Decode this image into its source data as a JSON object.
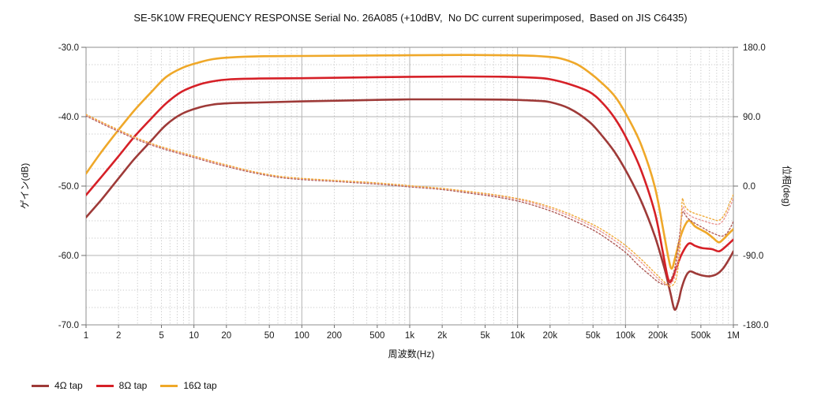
{
  "chart_data": {
    "type": "line",
    "title": "SE-5K10W FREQUENCY RESPONSE Serial No. 26A085 (+10dBV,  No DC current superimposed,  Based on JIS C6435)",
    "xlabel": "周波数(Hz)",
    "ylabel_left": "ゲイン(dB)",
    "ylabel_right": "位相(deg)",
    "x_scale": "log",
    "x_range_hz": [
      1,
      1000000
    ],
    "y_left_range_db": [
      -70,
      -30
    ],
    "y_right_range_deg": [
      -180,
      180
    ],
    "grid": "major-solid, minor-dotted (2.5 dB / 22.5 deg steps, log minor decades)",
    "legend_position": "bottom-left",
    "x_tick_freqs": [
      1,
      2,
      5,
      10,
      20,
      50,
      100,
      200,
      500,
      1000,
      2000,
      5000,
      10000,
      20000,
      50000,
      100000,
      200000,
      500000,
      1000000
    ],
    "x_tick_labels": [
      "1",
      "2",
      "5",
      "10",
      "20",
      "50",
      "100",
      "200",
      "500",
      "1k",
      "2k",
      "5k",
      "10k",
      "20k",
      "50k",
      "100k",
      "200k",
      "500k",
      "1M"
    ],
    "y_left_tick_values": [
      -30,
      -40,
      -50,
      -60,
      -70
    ],
    "y_left_ticks": [
      "-30.0",
      "-40.0",
      "-50.0",
      "-60.0",
      "-70.0"
    ],
    "y_right_tick_values": [
      180,
      90,
      0,
      -90,
      -180
    ],
    "y_right_ticks": [
      "180.0",
      "90.0",
      "0.0",
      "-90.0",
      "-180.0"
    ],
    "series": [
      {
        "id": "4ohm",
        "name": "4Ω tap gain",
        "axis": "gain",
        "unit": "dB",
        "line_style": "solid",
        "color": "#9E3A38",
        "width": 2.6,
        "points": [
          [
            1,
            -54.5
          ],
          [
            1.4,
            -51.9
          ],
          [
            2,
            -48.9
          ],
          [
            2.8,
            -46.1
          ],
          [
            4,
            -43.5
          ],
          [
            5.5,
            -41.2
          ],
          [
            7.7,
            -39.6
          ],
          [
            11,
            -38.7
          ],
          [
            15,
            -38.25
          ],
          [
            22,
            -38.05
          ],
          [
            40,
            -37.95
          ],
          [
            100,
            -37.8
          ],
          [
            300,
            -37.65
          ],
          [
            1000,
            -37.5
          ],
          [
            3000,
            -37.5
          ],
          [
            8000,
            -37.55
          ],
          [
            15000,
            -37.7
          ],
          [
            20000,
            -37.9
          ],
          [
            30000,
            -38.8
          ],
          [
            46000,
            -40.7
          ],
          [
            61000,
            -42.8
          ],
          [
            81000,
            -45.3
          ],
          [
            106000,
            -48.4
          ],
          [
            141000,
            -52.3
          ],
          [
            187000,
            -57.2
          ],
          [
            230000,
            -61.9
          ],
          [
            260000,
            -65.3
          ],
          [
            285000,
            -67.8
          ],
          [
            310000,
            -66.6
          ],
          [
            330000,
            -64.8
          ],
          [
            360000,
            -63.1
          ],
          [
            395000,
            -62.3
          ],
          [
            450000,
            -62.6
          ],
          [
            520000,
            -62.9
          ],
          [
            600000,
            -63.0
          ],
          [
            700000,
            -62.7
          ],
          [
            800000,
            -61.9
          ],
          [
            900000,
            -60.7
          ],
          [
            1000000,
            -59.4
          ]
        ]
      },
      {
        "id": "8ohm",
        "name": "8Ω tap gain",
        "axis": "gain",
        "unit": "dB",
        "line_style": "solid",
        "color": "#D62027",
        "width": 2.6,
        "points": [
          [
            1,
            -51.3
          ],
          [
            1.4,
            -48.6
          ],
          [
            2,
            -45.7
          ],
          [
            2.8,
            -42.9
          ],
          [
            4,
            -40.3
          ],
          [
            5.5,
            -38.1
          ],
          [
            7.7,
            -36.4
          ],
          [
            11,
            -35.4
          ],
          [
            15,
            -34.9
          ],
          [
            22,
            -34.6
          ],
          [
            40,
            -34.5
          ],
          [
            100,
            -34.45
          ],
          [
            300,
            -34.35
          ],
          [
            1000,
            -34.25
          ],
          [
            3000,
            -34.2
          ],
          [
            8000,
            -34.25
          ],
          [
            15000,
            -34.4
          ],
          [
            20000,
            -34.6
          ],
          [
            30000,
            -35.3
          ],
          [
            46000,
            -36.4
          ],
          [
            61000,
            -38.0
          ],
          [
            81000,
            -40.4
          ],
          [
            106000,
            -43.6
          ],
          [
            141000,
            -47.9
          ],
          [
            187000,
            -53.8
          ],
          [
            220000,
            -59.2
          ],
          [
            245000,
            -63.0
          ],
          [
            262000,
            -63.8
          ],
          [
            290000,
            -62.2
          ],
          [
            330000,
            -59.9
          ],
          [
            385000,
            -58.3
          ],
          [
            440000,
            -58.6
          ],
          [
            500000,
            -58.9
          ],
          [
            560000,
            -59.0
          ],
          [
            640000,
            -59.1
          ],
          [
            740000,
            -59.4
          ],
          [
            850000,
            -58.7
          ],
          [
            1000000,
            -57.7
          ]
        ]
      },
      {
        "id": "16ohm",
        "name": "16Ω tap gain",
        "axis": "gain",
        "unit": "dB",
        "line_style": "solid",
        "color": "#EFA829",
        "width": 2.6,
        "points": [
          [
            1,
            -48.2
          ],
          [
            1.4,
            -45.0
          ],
          [
            2,
            -41.9
          ],
          [
            2.8,
            -39.1
          ],
          [
            4,
            -36.5
          ],
          [
            5.5,
            -34.3
          ],
          [
            7.7,
            -33.0
          ],
          [
            11,
            -32.2
          ],
          [
            15,
            -31.7
          ],
          [
            22,
            -31.45
          ],
          [
            40,
            -31.3
          ],
          [
            100,
            -31.25
          ],
          [
            300,
            -31.2
          ],
          [
            1000,
            -31.15
          ],
          [
            3000,
            -31.1
          ],
          [
            8000,
            -31.15
          ],
          [
            15000,
            -31.25
          ],
          [
            20000,
            -31.4
          ],
          [
            25000,
            -31.6
          ],
          [
            35000,
            -32.4
          ],
          [
            46000,
            -33.6
          ],
          [
            61000,
            -35.2
          ],
          [
            81000,
            -37.2
          ],
          [
            106000,
            -40.2
          ],
          [
            141000,
            -44.2
          ],
          [
            187000,
            -50.1
          ],
          [
            225000,
            -56.5
          ],
          [
            250000,
            -60.3
          ],
          [
            268000,
            -61.9
          ],
          [
            290000,
            -60.2
          ],
          [
            330000,
            -56.9
          ],
          [
            382000,
            -55.0
          ],
          [
            440000,
            -55.8
          ],
          [
            500000,
            -56.3
          ],
          [
            560000,
            -56.7
          ],
          [
            640000,
            -57.4
          ],
          [
            730000,
            -58.1
          ],
          [
            800000,
            -57.7
          ],
          [
            900000,
            -56.9
          ],
          [
            1000000,
            -56.2
          ]
        ]
      },
      {
        "id": "4ohm",
        "name": "4Ω tap phase",
        "axis": "phase",
        "unit": "deg",
        "line_style": "dotted",
        "color": "#AE5A55",
        "width": 1.4,
        "points": [
          [
            1,
            91
          ],
          [
            1.4,
            81
          ],
          [
            2,
            71
          ],
          [
            3,
            60
          ],
          [
            4.5,
            51
          ],
          [
            7,
            43
          ],
          [
            10,
            37
          ],
          [
            15,
            30
          ],
          [
            22,
            24
          ],
          [
            35,
            17.5
          ],
          [
            60,
            11.5
          ],
          [
            100,
            8.5
          ],
          [
            200,
            6
          ],
          [
            400,
            3.5
          ],
          [
            700,
            1
          ],
          [
            1000,
            -1
          ],
          [
            2000,
            -4.5
          ],
          [
            3500,
            -9
          ],
          [
            6000,
            -13.5
          ],
          [
            9000,
            -18
          ],
          [
            13000,
            -23.5
          ],
          [
            20000,
            -32
          ],
          [
            30000,
            -42
          ],
          [
            50000,
            -57
          ],
          [
            70000,
            -70
          ],
          [
            100000,
            -86
          ],
          [
            130000,
            -102
          ],
          [
            170000,
            -116
          ],
          [
            205000,
            -125
          ],
          [
            240000,
            -127
          ],
          [
            280000,
            -112
          ],
          [
            310000,
            -75
          ],
          [
            330000,
            -42
          ],
          [
            345000,
            -33
          ],
          [
            360000,
            -38
          ],
          [
            395000,
            -44
          ],
          [
            450000,
            -49
          ],
          [
            520000,
            -54
          ],
          [
            600000,
            -59
          ],
          [
            700000,
            -63
          ],
          [
            780000,
            -65
          ],
          [
            860000,
            -62
          ],
          [
            930000,
            -55
          ],
          [
            1000000,
            -46
          ]
        ]
      },
      {
        "id": "8ohm",
        "name": "8Ω tap phase",
        "axis": "phase",
        "unit": "deg",
        "line_style": "dotted",
        "color": "#E99795",
        "width": 1.4,
        "points": [
          [
            1,
            92
          ],
          [
            1.4,
            82
          ],
          [
            2,
            72
          ],
          [
            3,
            61
          ],
          [
            4.5,
            52
          ],
          [
            7,
            44
          ],
          [
            10,
            38
          ],
          [
            15,
            31
          ],
          [
            22,
            25
          ],
          [
            35,
            18.5
          ],
          [
            60,
            12.5
          ],
          [
            100,
            9.5
          ],
          [
            200,
            7
          ],
          [
            400,
            4.5
          ],
          [
            700,
            2
          ],
          [
            1000,
            0
          ],
          [
            2000,
            -3.5
          ],
          [
            3500,
            -7.5
          ],
          [
            6000,
            -12
          ],
          [
            9000,
            -16
          ],
          [
            13000,
            -21
          ],
          [
            20000,
            -29
          ],
          [
            30000,
            -38.5
          ],
          [
            50000,
            -53
          ],
          [
            70000,
            -65.5
          ],
          [
            100000,
            -81
          ],
          [
            140000,
            -99
          ],
          [
            180000,
            -114
          ],
          [
            220000,
            -125
          ],
          [
            255000,
            -128
          ],
          [
            290000,
            -115
          ],
          [
            315000,
            -78
          ],
          [
            330000,
            -38
          ],
          [
            342000,
            -27
          ],
          [
            355000,
            -32
          ],
          [
            385000,
            -37
          ],
          [
            430000,
            -41
          ],
          [
            500000,
            -44
          ],
          [
            580000,
            -47
          ],
          [
            660000,
            -49
          ],
          [
            730000,
            -49.5
          ],
          [
            800000,
            -45
          ],
          [
            870000,
            -36
          ],
          [
            930000,
            -27
          ],
          [
            1000000,
            -16
          ]
        ]
      },
      {
        "id": "16ohm",
        "name": "16Ω tap phase",
        "axis": "phase",
        "unit": "deg",
        "line_style": "dotted",
        "color": "#F0AC3C",
        "width": 1.4,
        "points": [
          [
            1,
            93
          ],
          [
            1.4,
            83
          ],
          [
            2,
            73
          ],
          [
            3,
            62
          ],
          [
            4.5,
            53
          ],
          [
            7,
            45
          ],
          [
            10,
            39
          ],
          [
            15,
            32
          ],
          [
            22,
            26
          ],
          [
            35,
            19
          ],
          [
            60,
            13
          ],
          [
            100,
            10
          ],
          [
            200,
            7.5
          ],
          [
            400,
            5
          ],
          [
            700,
            2.5
          ],
          [
            1000,
            0.5
          ],
          [
            2000,
            -3
          ],
          [
            3500,
            -7
          ],
          [
            6000,
            -11
          ],
          [
            9000,
            -15
          ],
          [
            13000,
            -19.5
          ],
          [
            20000,
            -27
          ],
          [
            30000,
            -36
          ],
          [
            50000,
            -50
          ],
          [
            70000,
            -62
          ],
          [
            100000,
            -77
          ],
          [
            140000,
            -95
          ],
          [
            180000,
            -110
          ],
          [
            220000,
            -122
          ],
          [
            260000,
            -130
          ],
          [
            295000,
            -120
          ],
          [
            318000,
            -85
          ],
          [
            330000,
            -35
          ],
          [
            338000,
            -16
          ],
          [
            350000,
            -24
          ],
          [
            380000,
            -31
          ],
          [
            430000,
            -35
          ],
          [
            500000,
            -38
          ],
          [
            580000,
            -41
          ],
          [
            660000,
            -43.5
          ],
          [
            730000,
            -44.5
          ],
          [
            800000,
            -40
          ],
          [
            870000,
            -31
          ],
          [
            930000,
            -21
          ],
          [
            1000000,
            -11
          ]
        ]
      }
    ]
  },
  "legend": {
    "items": [
      {
        "label": "4Ω tap",
        "color": "#9E3A38"
      },
      {
        "label": "8Ω tap",
        "color": "#D62027"
      },
      {
        "label": "16Ω tap",
        "color": "#EFA829"
      }
    ]
  },
  "style_colors": {
    "background": "#ffffff",
    "grid_minor": "#c7c7c7",
    "grid_major": "#b4b4b4",
    "frame": "#8f8f8f",
    "tick": "#6e6e6e",
    "text": "#1b1b1b"
  }
}
